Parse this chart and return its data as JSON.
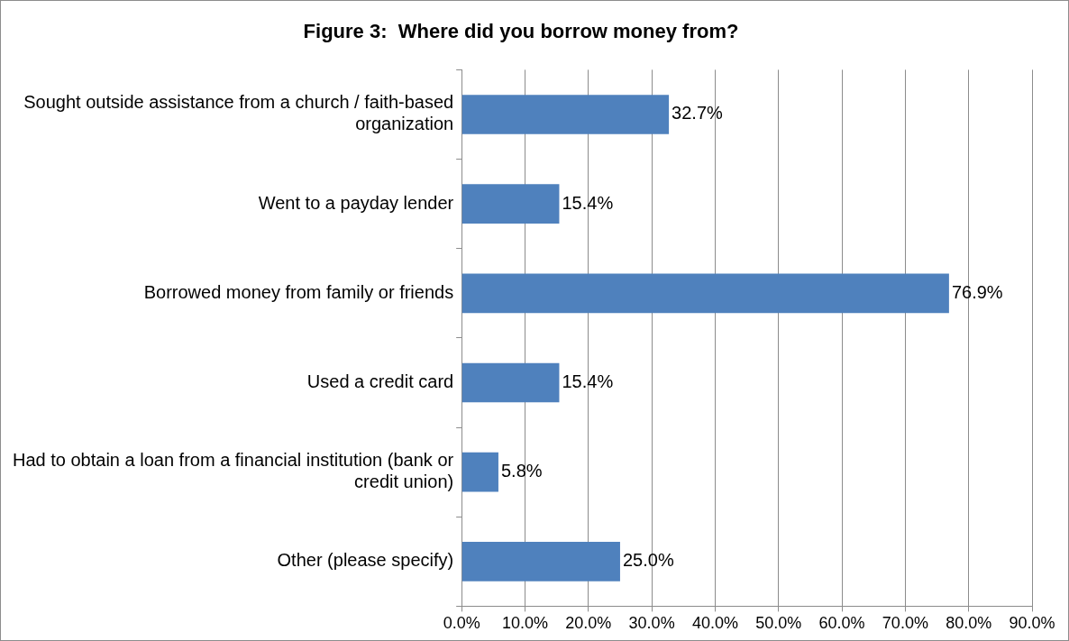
{
  "chart_data": {
    "type": "bar",
    "orientation": "horizontal",
    "title": "Figure 3:  Where did you borrow money from?",
    "categories": [
      "Sought outside assistance from a church / faith-based organization",
      "Went to a payday lender",
      "Borrowed money from family or friends",
      "Used a credit card",
      "Had to obtain a loan from a financial institution (bank or credit union)",
      "Other (please specify)"
    ],
    "values": [
      32.7,
      15.4,
      76.9,
      15.4,
      5.8,
      25.0
    ],
    "value_labels": [
      "32.7%",
      "15.4%",
      "76.9%",
      "15.4%",
      "5.8%",
      "25.0%"
    ],
    "color": "#4f81bd",
    "xlim": [
      0,
      90
    ],
    "xticks": [
      {
        "value": 0,
        "label": "0.0%"
      },
      {
        "value": 10,
        "label": "10.0%"
      },
      {
        "value": 20,
        "label": "20.0%"
      },
      {
        "value": 30,
        "label": "30.0%"
      },
      {
        "value": 40,
        "label": "40.0%"
      },
      {
        "value": 50,
        "label": "50.0%"
      },
      {
        "value": 60,
        "label": "60.0%"
      },
      {
        "value": 70,
        "label": "70.0%"
      },
      {
        "value": 80,
        "label": "80.0%"
      },
      {
        "value": 90,
        "label": "90.0%"
      }
    ],
    "grid": "x"
  }
}
